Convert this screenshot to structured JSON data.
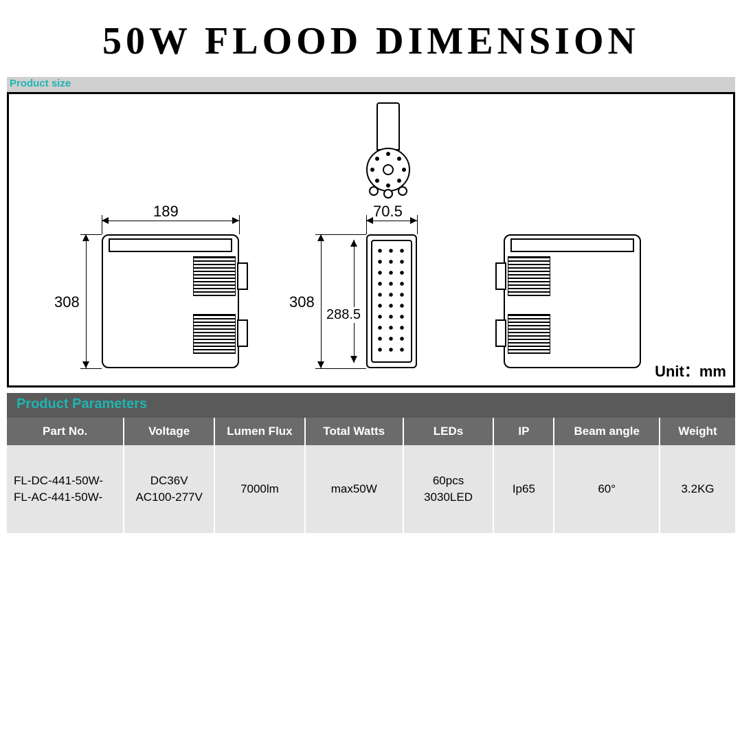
{
  "title": "50W FLOOD DIMENSION",
  "product_size_label": "Product size",
  "unit_label": "Unit：mm",
  "diagram": {
    "stroke_color": "#000000",
    "background": "#ffffff",
    "unit": "mm",
    "views": {
      "side": {
        "width_mm": 189,
        "height_mm": 308
      },
      "front": {
        "width_mm": 70.5,
        "height_mm": 308,
        "inner_height_mm": 288.5
      },
      "top_bracket": true,
      "back": true
    },
    "dimensions": {
      "side_width": "189",
      "side_height": "308",
      "front_height": "308",
      "front_inner_height": "288.5",
      "front_width": "70.5"
    }
  },
  "parameters": {
    "section_label": "Product  Parameters",
    "columns": [
      "Part No.",
      "Voltage",
      "Lumen Flux",
      "Total Watts",
      "LEDs",
      "IP",
      "Beam  angle",
      "Weight"
    ],
    "col_widths_pct": [
      15,
      12,
      12,
      13,
      12,
      8,
      14,
      10
    ],
    "header_bg": "#6b6b6b",
    "header_fg": "#ffffff",
    "row_bg": "#e5e5e5",
    "accent_color": "#1fb5b0",
    "rows": [
      {
        "part_no": "FL-DC-441-50W-\nFL-AC-441-50W-",
        "voltage": "DC36V\nAC100-277V",
        "lumen_flux": "7000lm",
        "total_watts": "max50W",
        "leds": "60pcs\n3030LED",
        "ip": "Ip65",
        "beam_angle": "60°",
        "weight": "3.2KG"
      }
    ]
  }
}
